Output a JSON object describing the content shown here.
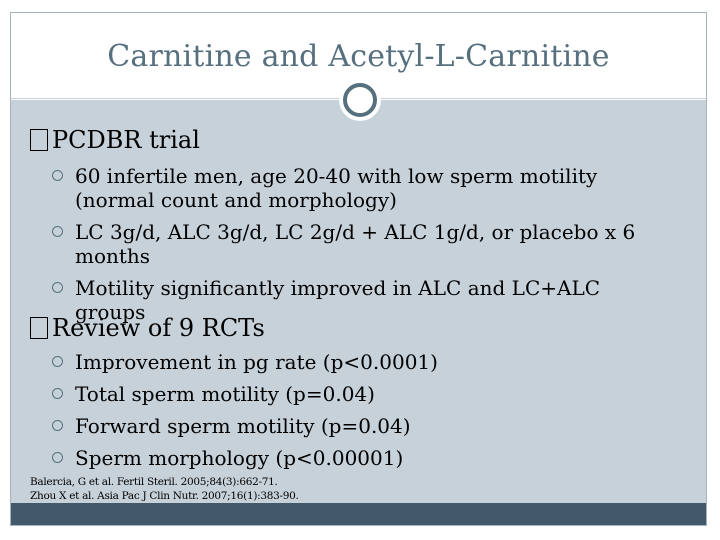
{
  "slide": {
    "title": "Carnitine and Acetyl-L-Carnitine",
    "sections": [
      {
        "heading": "PCDBR trial",
        "bullets": [
          "60 infertile men, age 20-40 with low sperm motility (normal count and morphology)",
          "LC 3g/d, ALC 3g/d, LC 2g/d + ALC 1g/d, or placebo x 6 months",
          "Motility significantly improved in ALC and LC+ALC groups"
        ]
      },
      {
        "heading": "Review of 9 RCTs",
        "bullets": [
          "Improvement in pg rate (p<0.0001)",
          "Total sperm motility (p=0.04)",
          "Forward sperm motility (p=0.04)",
          "Sperm morphology (p<0.00001)"
        ]
      }
    ],
    "references": [
      "Balercia, G et al. Fertil Steril. 2005;84(3):662-71.",
      "Zhou X et al. Asia Pac J Clin Nutr. 2007;16(1):383-90."
    ]
  },
  "colors": {
    "title": "#56707f",
    "panel": "#c7d1d9",
    "band": "#42596b"
  }
}
